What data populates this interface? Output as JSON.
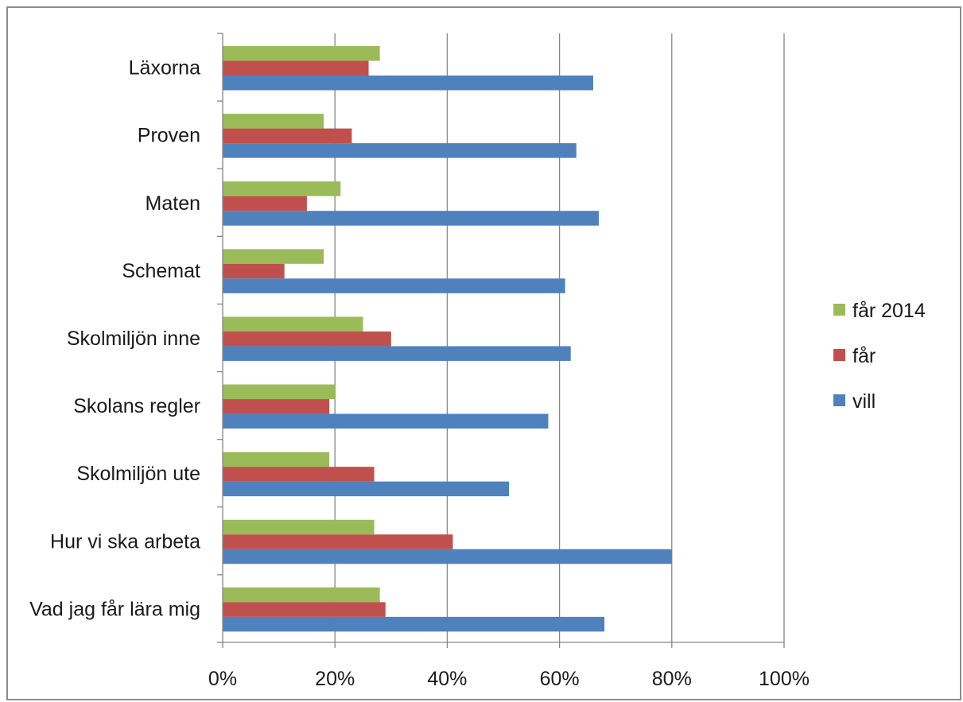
{
  "chart_data": {
    "type": "bar",
    "orientation": "horizontal",
    "title": "",
    "xlabel": "",
    "ylabel": "",
    "categories": [
      "Läxorna",
      "Proven",
      "Maten",
      "Schemat",
      "Skolmiljön inne",
      "Skolans regler",
      "Skolmiljön ute",
      "Hur vi ska arbeta",
      "Vad jag får lära mig"
    ],
    "series": [
      {
        "name": "får 2014",
        "color": "#9bbb59",
        "values": [
          28,
          18,
          21,
          18,
          25,
          20,
          19,
          27,
          28
        ]
      },
      {
        "name": "får",
        "color": "#c0504d",
        "values": [
          26,
          23,
          15,
          11,
          30,
          19,
          27,
          41,
          29
        ]
      },
      {
        "name": "vill",
        "color": "#4f81bd",
        "values": [
          66,
          63,
          67,
          61,
          62,
          58,
          51,
          80,
          68
        ]
      }
    ],
    "xlim": [
      0,
      100
    ],
    "xticks": [
      0,
      20,
      40,
      60,
      80,
      100
    ],
    "tick_labels": [
      "0%",
      "20%",
      "40%",
      "60%",
      "80%",
      "100%"
    ],
    "grid": true,
    "legend_position": "right",
    "legend": [
      "får 2014",
      "får",
      "vill"
    ]
  }
}
